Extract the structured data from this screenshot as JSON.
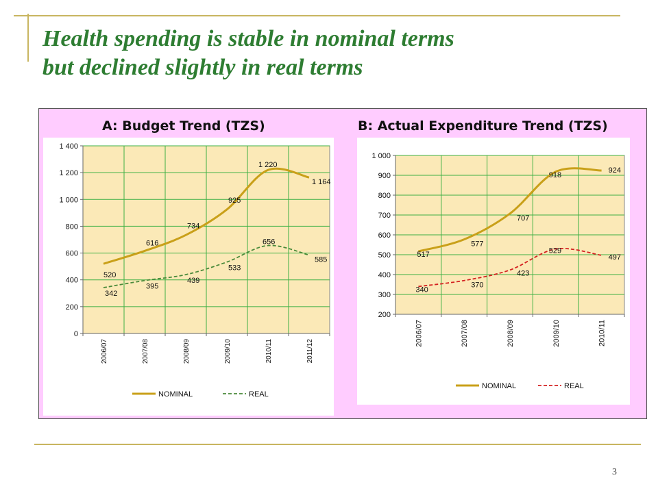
{
  "slide": {
    "title_line1": "Health spending is stable in nominal terms",
    "title_line2": "but declined slightly in real terms",
    "page_number": "3"
  },
  "chart_data": [
    {
      "type": "line",
      "title": "A:  Budget Trend (TZS)",
      "categories": [
        "2006/07",
        "2007/08",
        "2008/09",
        "2009/10",
        "2010/11",
        "2011/12"
      ],
      "series": [
        {
          "name": "NOMINAL",
          "values": [
            520,
            616,
            734,
            925,
            1220,
            1164
          ],
          "labels": [
            "520",
            "616",
            "734",
            "925",
            "1 220",
            "1 164"
          ],
          "color": "#c9a019",
          "dash": "solid"
        },
        {
          "name": "REAL",
          "values": [
            342,
            395,
            439,
            533,
            656,
            585
          ],
          "labels": [
            "342",
            "395",
            "439",
            "533",
            "656",
            "585"
          ],
          "color": "#4a8a3a",
          "dash": "dashed"
        }
      ],
      "ylim": [
        0,
        1400
      ],
      "yticks": [
        0,
        200,
        400,
        600,
        800,
        1000,
        1200,
        1400
      ],
      "ytick_labels": [
        "0",
        "200",
        "400",
        "600",
        "800",
        "1 000",
        "1 200",
        "1 400"
      ],
      "grid": true,
      "legend_position": "bottom",
      "plot_bg": "#fbe9b7",
      "grid_color": "#3cb043"
    },
    {
      "type": "line",
      "title": "B: Actual Expenditure Trend (TZS)",
      "categories": [
        "2006/07",
        "2007/08",
        "2008/09",
        "2009/10",
        "2010/11"
      ],
      "series": [
        {
          "name": "NOMINAL",
          "values": [
            517,
            577,
            707,
            918,
            924
          ],
          "labels": [
            "517",
            "577",
            "707",
            "918",
            "924"
          ],
          "color": "#c9a019",
          "dash": "solid"
        },
        {
          "name": "REAL",
          "values": [
            340,
            370,
            423,
            529,
            497
          ],
          "labels": [
            "340",
            "370",
            "423",
            "529",
            "497"
          ],
          "color": "#d42020",
          "dash": "dashed"
        }
      ],
      "ylim": [
        200,
        1000
      ],
      "yticks": [
        200,
        300,
        400,
        500,
        600,
        700,
        800,
        900,
        1000
      ],
      "ytick_labels": [
        "200",
        "300",
        "400",
        "500",
        "600",
        "700",
        "800",
        "900",
        "1 000"
      ],
      "grid": true,
      "legend_position": "bottom",
      "plot_bg": "#fbe9b7",
      "grid_color": "#3cb043"
    }
  ]
}
